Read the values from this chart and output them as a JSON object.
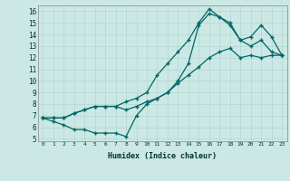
{
  "xlabel": "Humidex (Indice chaleur)",
  "bg_color": "#cce8e4",
  "line_color": "#006666",
  "grid_color": "#b0d8d4",
  "xlim": [
    -0.5,
    23.5
  ],
  "ylim": [
    4.8,
    16.5
  ],
  "yticks": [
    5,
    6,
    7,
    8,
    9,
    10,
    11,
    12,
    13,
    14,
    15,
    16
  ],
  "xticks": [
    0,
    1,
    2,
    3,
    4,
    5,
    6,
    7,
    8,
    9,
    10,
    11,
    12,
    13,
    14,
    15,
    16,
    17,
    18,
    19,
    20,
    21,
    22,
    23
  ],
  "line1_x": [
    0,
    1,
    2,
    3,
    4,
    5,
    6,
    7,
    8,
    9,
    10,
    11,
    12,
    13,
    14,
    15,
    16,
    17,
    18,
    19,
    20,
    21,
    22,
    23
  ],
  "line1_y": [
    6.8,
    6.8,
    6.8,
    7.2,
    7.5,
    7.8,
    7.8,
    7.8,
    8.2,
    8.5,
    9.0,
    10.5,
    11.5,
    12.5,
    13.5,
    15.0,
    16.2,
    15.5,
    14.8,
    13.5,
    13.8,
    14.8,
    13.8,
    12.2
  ],
  "line2_x": [
    0,
    1,
    2,
    3,
    4,
    5,
    6,
    7,
    8,
    9,
    10,
    11,
    12,
    13,
    14,
    15,
    16,
    17,
    18,
    19,
    20,
    21,
    22,
    23
  ],
  "line2_y": [
    6.8,
    6.5,
    6.2,
    5.8,
    5.8,
    5.5,
    5.5,
    5.5,
    5.2,
    7.0,
    8.0,
    8.5,
    9.0,
    10.0,
    11.5,
    14.8,
    15.8,
    15.5,
    15.0,
    13.5,
    13.0,
    13.5,
    12.5,
    12.2
  ],
  "line3_x": [
    0,
    1,
    2,
    3,
    4,
    5,
    6,
    7,
    8,
    9,
    10,
    11,
    12,
    13,
    14,
    15,
    16,
    17,
    18,
    19,
    20,
    21,
    22,
    23
  ],
  "line3_y": [
    6.8,
    6.8,
    6.8,
    7.2,
    7.5,
    7.8,
    7.8,
    7.8,
    7.5,
    7.8,
    8.2,
    8.5,
    9.0,
    9.8,
    10.5,
    11.2,
    12.0,
    12.5,
    12.8,
    12.0,
    12.2,
    12.0,
    12.2,
    12.2
  ]
}
